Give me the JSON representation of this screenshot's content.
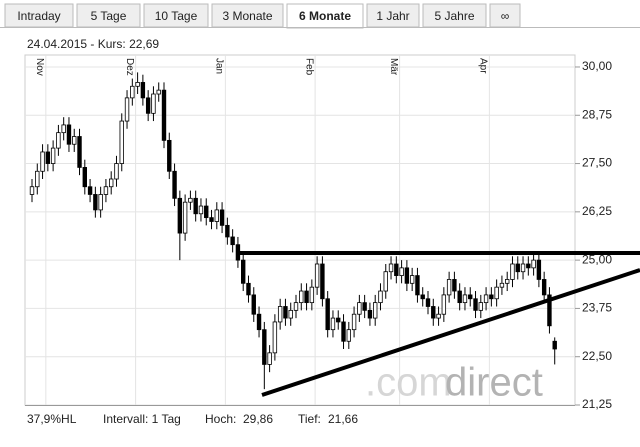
{
  "tabs": [
    "Intraday",
    "5 Tage",
    "10 Tage",
    "3 Monate",
    "6 Monate",
    "1 Jahr",
    "5 Jahre",
    "∞"
  ],
  "active_tab": "6 Monate",
  "chart_data": {
    "type": "candlestick",
    "title": "24.04.2015  - Kurs: 22,69",
    "categories": [
      null,
      null,
      null,
      "Nov",
      null,
      null,
      null,
      null,
      null,
      null,
      null,
      null,
      null,
      null,
      null,
      null,
      null,
      null,
      null,
      null,
      "Dez",
      null,
      null,
      null,
      null,
      null,
      null,
      null,
      null,
      null,
      null,
      null,
      null,
      null,
      null,
      null,
      null,
      "Jan",
      null,
      null,
      null,
      null,
      null,
      null,
      null,
      null,
      null,
      null,
      null,
      null,
      null,
      null,
      null,
      null,
      "Feb",
      null,
      null,
      null,
      null,
      null,
      null,
      null,
      null,
      null,
      null,
      null,
      null,
      null,
      null,
      null,
      "Mär",
      null,
      null,
      null,
      null,
      null,
      null,
      null,
      null,
      null,
      null,
      null,
      null,
      null,
      null,
      null,
      null,
      "Apr",
      null,
      null,
      null,
      null,
      null,
      null,
      null,
      null,
      null,
      null,
      null,
      null
    ],
    "open": [
      26.7,
      26.9,
      27.3,
      27.8,
      27.5,
      27.9,
      28.3,
      28.5,
      28.0,
      28.2,
      27.4,
      26.9,
      26.7,
      26.3,
      26.7,
      26.9,
      27.1,
      27.5,
      28.6,
      29.2,
      29.5,
      29.6,
      29.2,
      28.8,
      29.3,
      29.4,
      28.1,
      27.3,
      26.6,
      25.7,
      26.5,
      26.6,
      26.2,
      26.4,
      26.1,
      26.0,
      26.3,
      25.9,
      25.6,
      25.4,
      25.0,
      24.4,
      24.1,
      23.6,
      23.2,
      22.3,
      22.6,
      23.4,
      23.8,
      23.5,
      23.7,
      23.9,
      24.2,
      23.9,
      24.3,
      24.9,
      24.0,
      23.2,
      23.5,
      23.4,
      22.9,
      23.2,
      23.6,
      23.9,
      23.7,
      23.5,
      23.9,
      24.2,
      24.7,
      24.9,
      24.6,
      24.8,
      24.4,
      24.6,
      24.1,
      24.0,
      23.8,
      23.5,
      23.6,
      24.1,
      24.5,
      24.2,
      23.9,
      24.1,
      24.0,
      23.7,
      23.9,
      24.1,
      24.0,
      24.3,
      24.4,
      24.5,
      24.9,
      24.7,
      24.9,
      24.8,
      25.0,
      24.5,
      24.1,
      22.9
    ],
    "high": [
      27.1,
      27.5,
      28.0,
      28.0,
      28.1,
      28.5,
      28.7,
      28.7,
      28.4,
      28.4,
      27.6,
      27.1,
      26.9,
      26.9,
      27.1,
      27.3,
      27.7,
      28.8,
      29.4,
      29.7,
      29.86,
      29.8,
      29.4,
      29.5,
      29.6,
      29.6,
      28.3,
      27.5,
      26.8,
      26.7,
      26.8,
      26.8,
      26.6,
      26.6,
      26.3,
      26.5,
      26.5,
      26.1,
      25.8,
      25.6,
      25.2,
      24.6,
      24.3,
      23.8,
      23.4,
      22.8,
      23.6,
      24.0,
      24.0,
      23.9,
      24.1,
      24.4,
      24.4,
      24.5,
      25.1,
      25.1,
      24.2,
      23.7,
      23.7,
      23.6,
      23.4,
      23.8,
      24.1,
      24.1,
      23.9,
      24.1,
      24.4,
      24.9,
      25.1,
      25.1,
      25.0,
      25.0,
      24.8,
      24.8,
      24.3,
      24.2,
      24.0,
      23.8,
      24.3,
      24.7,
      24.7,
      24.4,
      24.3,
      24.3,
      24.2,
      24.1,
      24.3,
      24.3,
      24.5,
      24.6,
      24.7,
      25.1,
      25.1,
      25.1,
      25.1,
      25.2,
      25.2,
      24.7,
      24.3,
      23.0
    ],
    "low": [
      26.5,
      26.7,
      27.1,
      27.3,
      27.3,
      27.7,
      28.1,
      27.8,
      27.8,
      27.2,
      26.7,
      26.5,
      26.1,
      26.1,
      26.5,
      26.7,
      26.9,
      27.3,
      28.4,
      29.0,
      29.3,
      29.0,
      28.6,
      28.6,
      29.1,
      27.9,
      27.1,
      26.4,
      25.0,
      25.5,
      26.3,
      26.0,
      26.0,
      25.9,
      25.8,
      25.8,
      25.7,
      25.4,
      25.2,
      24.8,
      24.2,
      23.9,
      23.4,
      23.0,
      21.66,
      22.1,
      22.4,
      23.2,
      23.3,
      23.3,
      23.5,
      23.7,
      23.7,
      23.7,
      24.1,
      23.8,
      23.0,
      23.0,
      23.2,
      22.7,
      22.7,
      23.0,
      23.4,
      23.5,
      23.3,
      23.3,
      23.7,
      24.0,
      24.5,
      24.4,
      24.4,
      24.2,
      24.2,
      23.9,
      23.8,
      23.6,
      23.3,
      23.3,
      23.4,
      23.9,
      24.0,
      23.7,
      23.7,
      23.8,
      23.5,
      23.5,
      23.7,
      23.8,
      23.8,
      24.1,
      24.2,
      24.3,
      24.5,
      24.5,
      24.6,
      24.6,
      24.3,
      23.9,
      23.1,
      22.3
    ],
    "close": [
      26.9,
      27.3,
      27.8,
      27.5,
      27.9,
      28.3,
      28.5,
      28.0,
      28.2,
      27.4,
      26.9,
      26.7,
      26.3,
      26.7,
      26.9,
      27.1,
      27.5,
      28.6,
      29.2,
      29.5,
      29.6,
      29.2,
      28.8,
      29.3,
      29.4,
      28.1,
      27.3,
      26.6,
      25.7,
      26.5,
      26.6,
      26.2,
      26.4,
      26.1,
      26.0,
      26.3,
      25.9,
      25.6,
      25.4,
      25.0,
      24.4,
      24.1,
      23.6,
      23.2,
      22.3,
      22.6,
      23.4,
      23.8,
      23.5,
      23.7,
      23.9,
      24.2,
      23.9,
      24.3,
      24.9,
      24.0,
      23.2,
      23.5,
      23.4,
      22.9,
      23.2,
      23.6,
      23.9,
      23.7,
      23.5,
      23.9,
      24.2,
      24.7,
      24.9,
      24.6,
      24.8,
      24.4,
      24.6,
      24.1,
      24.0,
      23.8,
      23.5,
      23.6,
      24.1,
      24.5,
      24.2,
      23.9,
      24.1,
      24.0,
      23.7,
      23.9,
      24.1,
      24.0,
      24.3,
      24.4,
      24.5,
      24.9,
      24.7,
      24.9,
      24.8,
      25.0,
      24.5,
      24.1,
      23.3,
      22.7
    ],
    "ylim": [
      21.25,
      30.31
    ],
    "yticks": [
      {
        "value": 21.25,
        "label": "21,25"
      },
      {
        "value": 22.5,
        "label": "22,50"
      },
      {
        "value": 23.75,
        "label": "23,75"
      },
      {
        "value": 25,
        "label": "25,00"
      },
      {
        "value": 26.25,
        "label": "26,25"
      },
      {
        "value": 27.5,
        "label": "27,50"
      },
      {
        "value": 28.75,
        "label": "28,75"
      },
      {
        "value": 30,
        "label": "30,00"
      }
    ],
    "grid": true,
    "color": "#000000",
    "watermark": [
      ".com",
      "direct"
    ],
    "footer": [
      "37,9%HL",
      "Intervall: 1 Tag",
      "Hoch:",
      "29,86",
      "Tief:",
      "21,66"
    ]
  }
}
